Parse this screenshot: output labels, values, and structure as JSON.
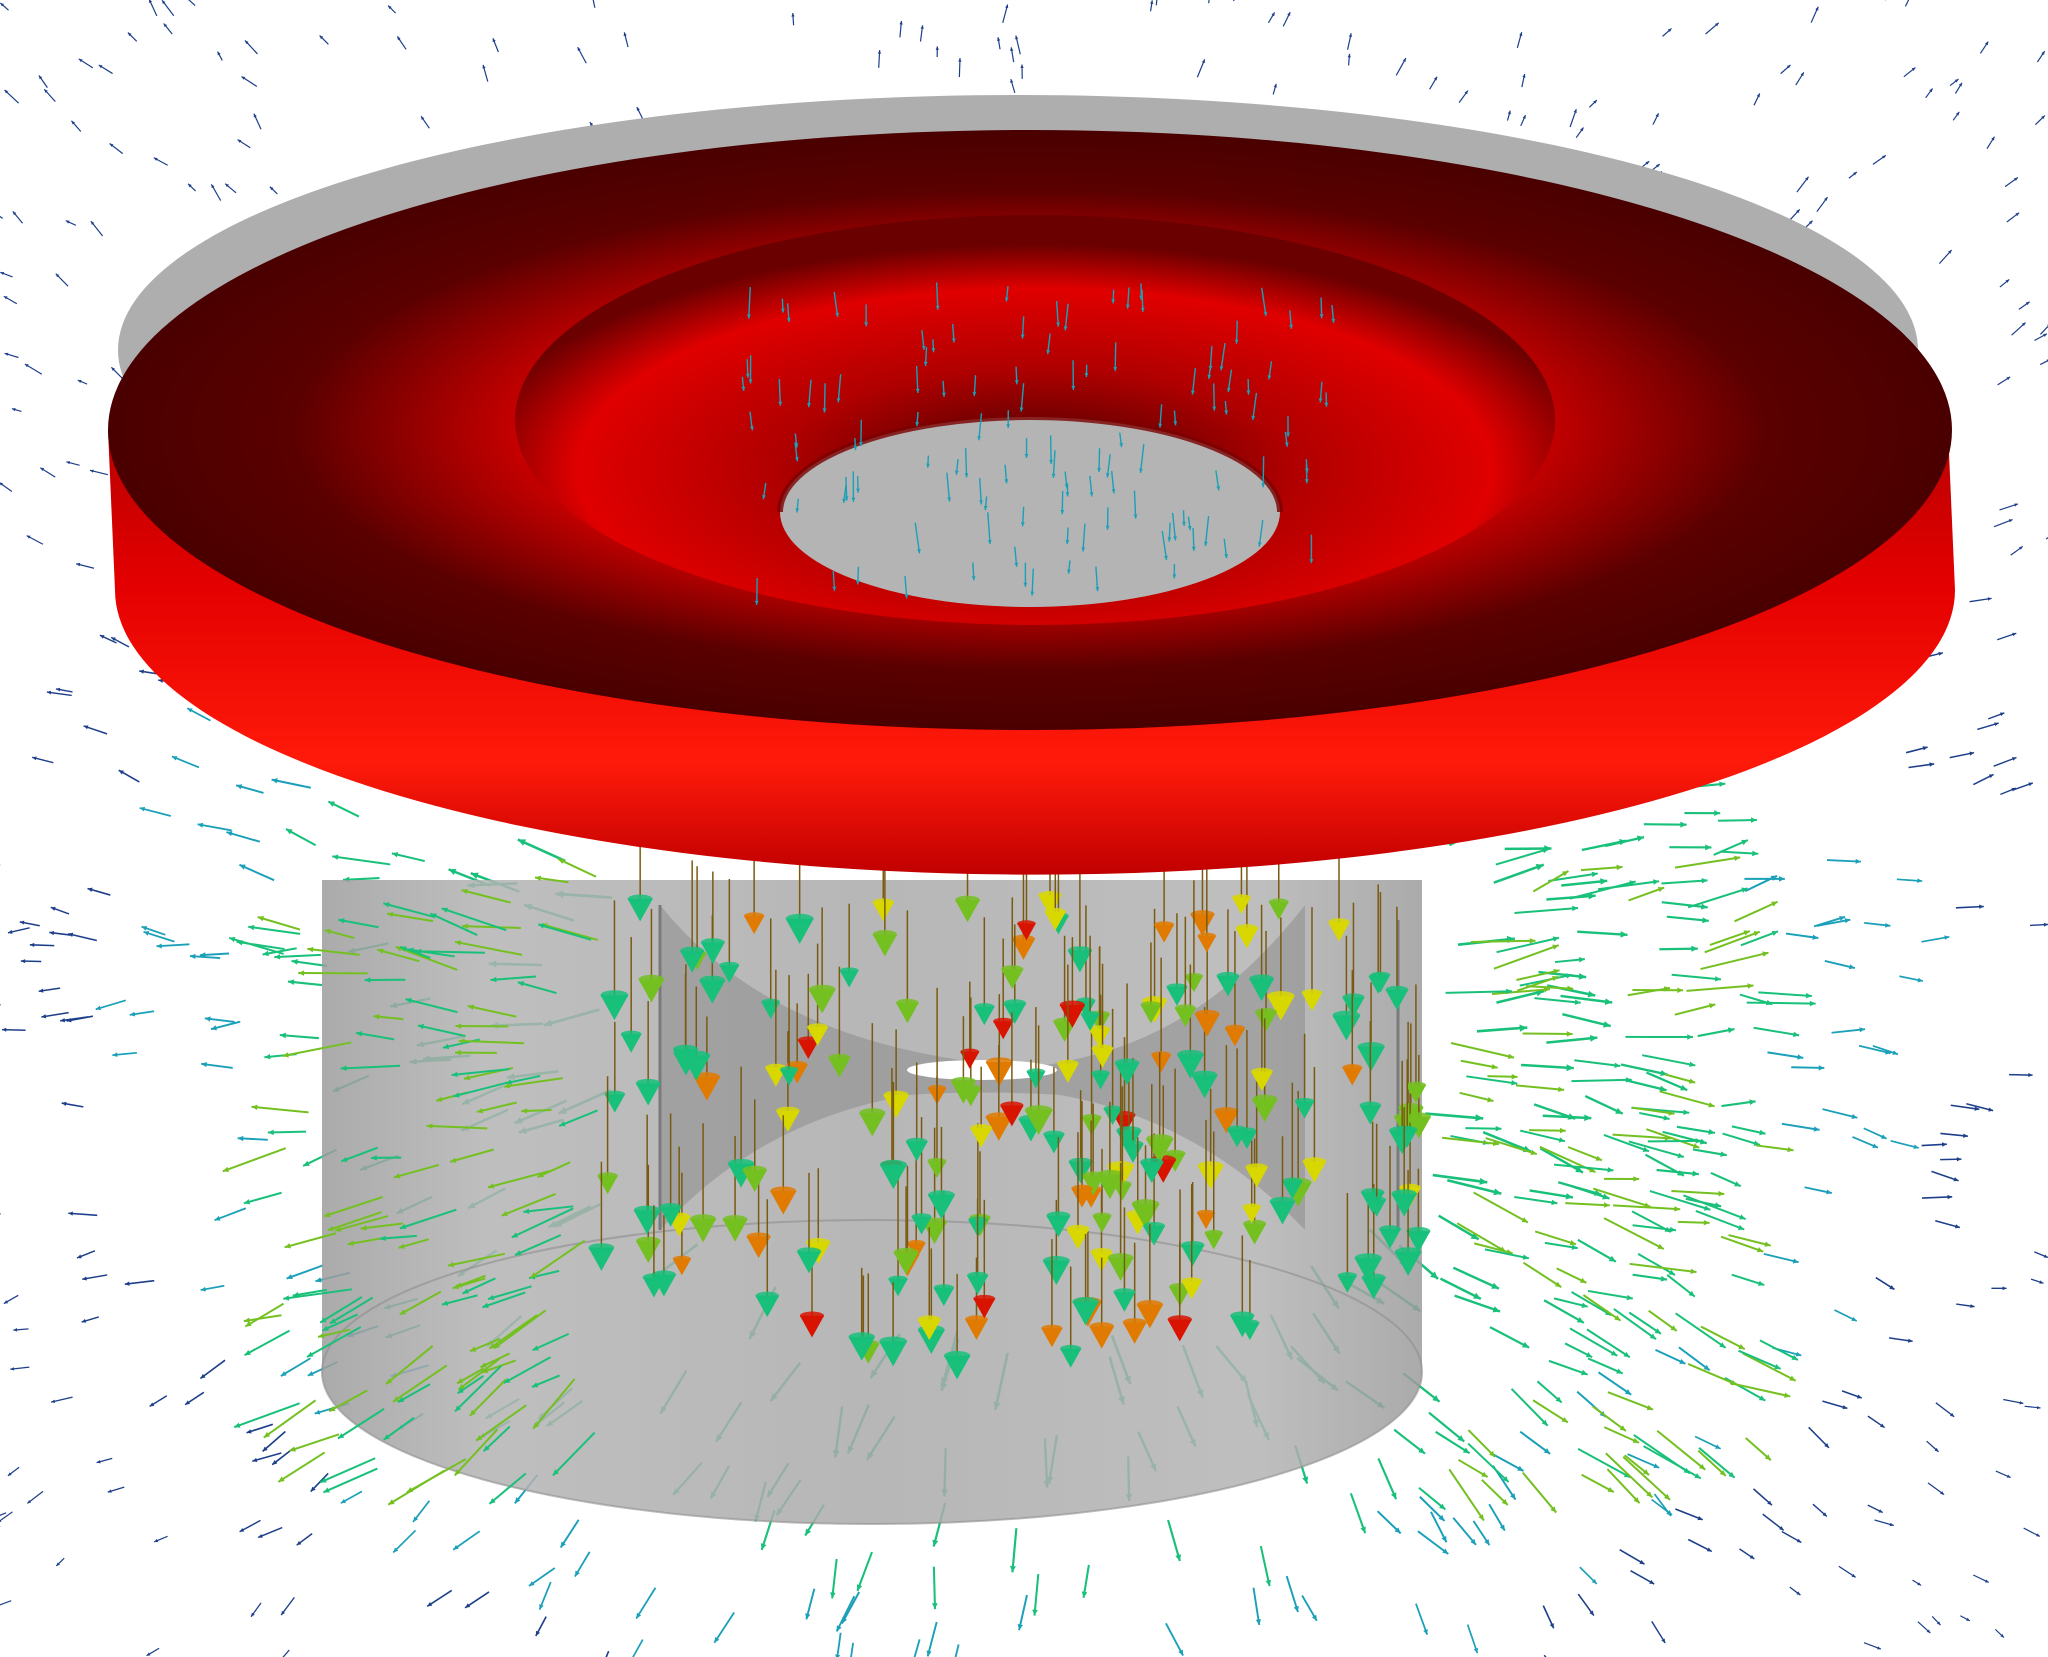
{
  "scene": {
    "background": "#ffffff",
    "objects": {
      "shell": {
        "color": "#aaaaaa",
        "rim_color": "#9a9a9a"
      },
      "ring": {
        "color": "#e00000",
        "shadow": "#4a0000"
      },
      "core": {
        "color": "#8f8f8f"
      }
    },
    "vector_field": {
      "colormap": [
        "#1d3f8a",
        "#1aa0b8",
        "#18c07a",
        "#74c020",
        "#d8d800",
        "#e07a00",
        "#d81400"
      ],
      "glyphs": [
        "arrow",
        "cone",
        "sphere"
      ]
    }
  }
}
